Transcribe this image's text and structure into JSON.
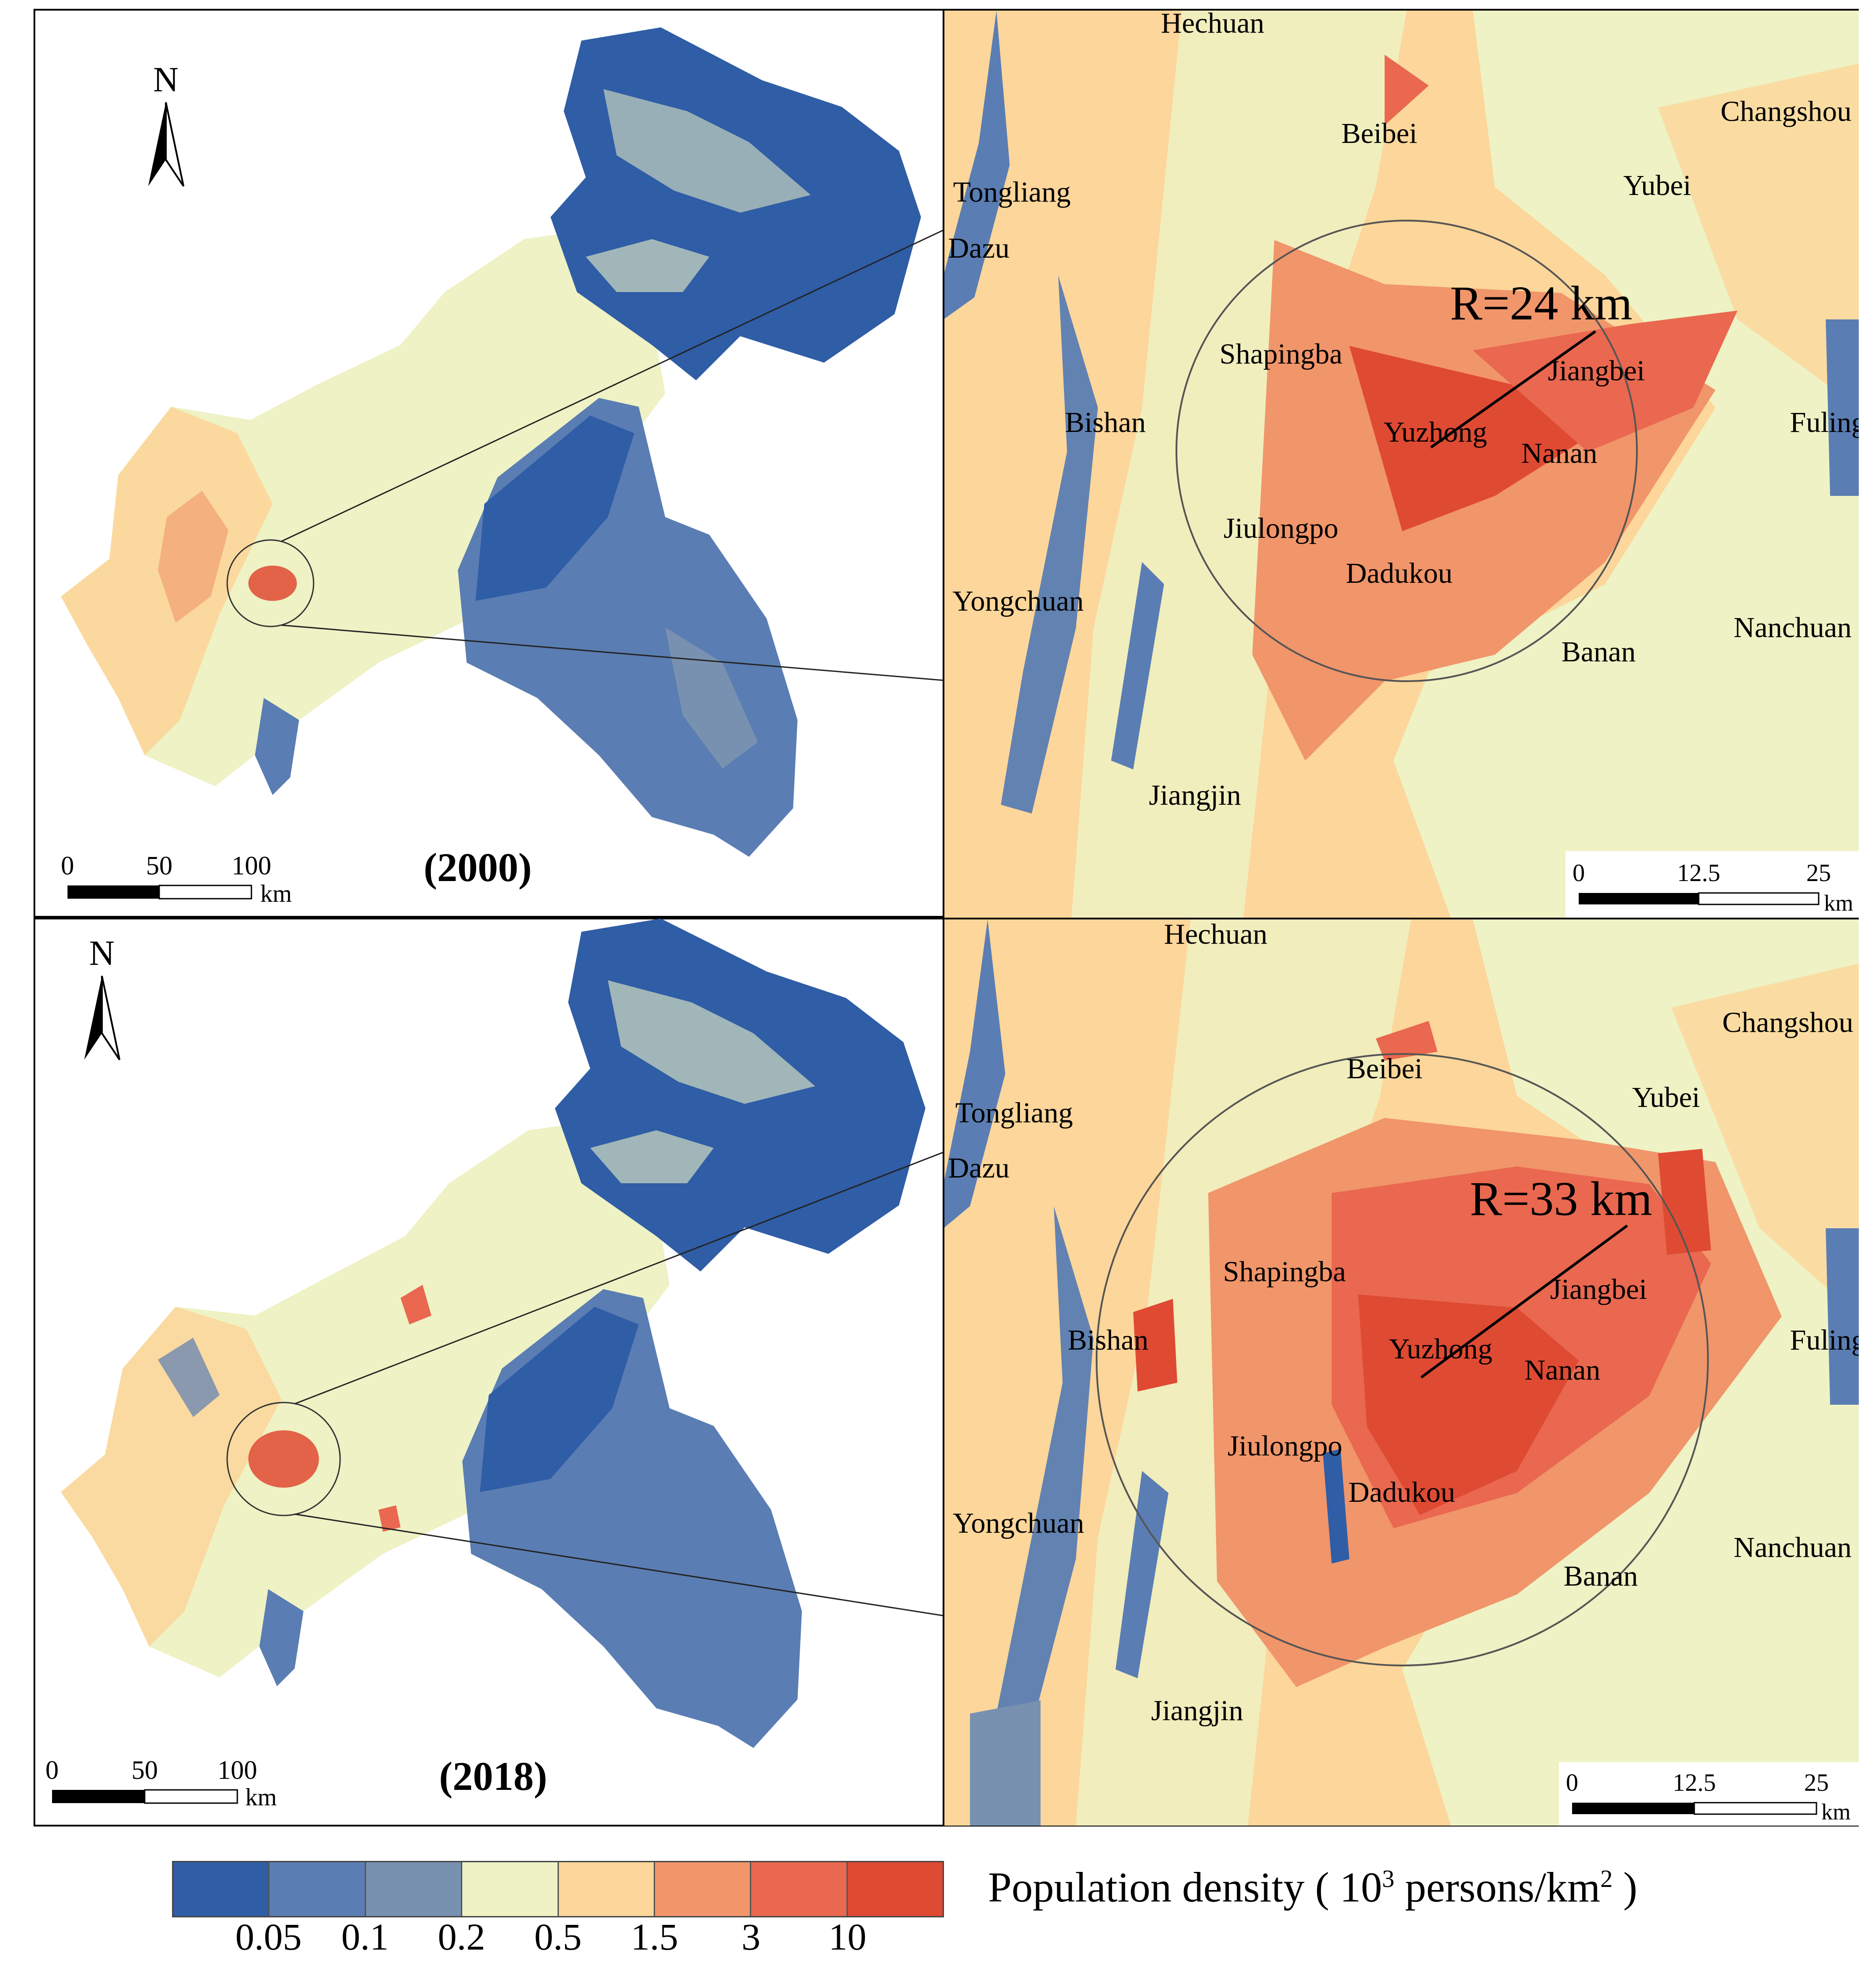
{
  "panels": [
    {
      "year_label": "(2000)",
      "radius_label": "R=24 km",
      "north_label": "N",
      "province_scale": {
        "ticks": [
          "0",
          "50",
          "100"
        ],
        "unit": "km"
      },
      "zoom_scale": {
        "ticks": [
          "0",
          "12.5",
          "25"
        ],
        "unit": "km"
      },
      "places": [
        "Hechuan",
        "Beibei",
        "Changshou",
        "Tongliang",
        "Yubei",
        "Dazu",
        "Shapingba",
        "Jiangbei",
        "Bishan",
        "Yuzhong",
        "Nanan",
        "Fuling",
        "Jiulongpo",
        "Dadukou",
        "Yongchuan",
        "Nanchuan",
        "Banan",
        "Jiangjin"
      ]
    },
    {
      "year_label": "(2018)",
      "radius_label": "R=33 km",
      "north_label": "N",
      "province_scale": {
        "ticks": [
          "0",
          "50",
          "100"
        ],
        "unit": "km"
      },
      "zoom_scale": {
        "ticks": [
          "0",
          "12.5",
          "25"
        ],
        "unit": "km"
      },
      "places": [
        "Hechuan",
        "Beibei",
        "Changshou",
        "Tongliang",
        "Yubei",
        "Dazu",
        "Shapingba",
        "Jiangbei",
        "Bishan",
        "Yuzhong",
        "Nanan",
        "Fuling",
        "Jiulongpo",
        "Dadukou",
        "Yongchuan",
        "Nanchuan",
        "Banan",
        "Jiangjin"
      ]
    }
  ],
  "legend": {
    "title_main": "Population density ( 10",
    "title_sup1": "3",
    "title_mid": " persons/km",
    "title_sup2": "2",
    "title_end": " )",
    "colors": [
      "#2f5da6",
      "#5a7db3",
      "#7891b0",
      "#eef2c4",
      "#fcd69a",
      "#f1956a",
      "#e9684f",
      "#df4a33"
    ],
    "breaks": [
      "0.05",
      "0.1",
      "0.2",
      "0.5",
      "1.5",
      "3",
      "10"
    ]
  }
}
